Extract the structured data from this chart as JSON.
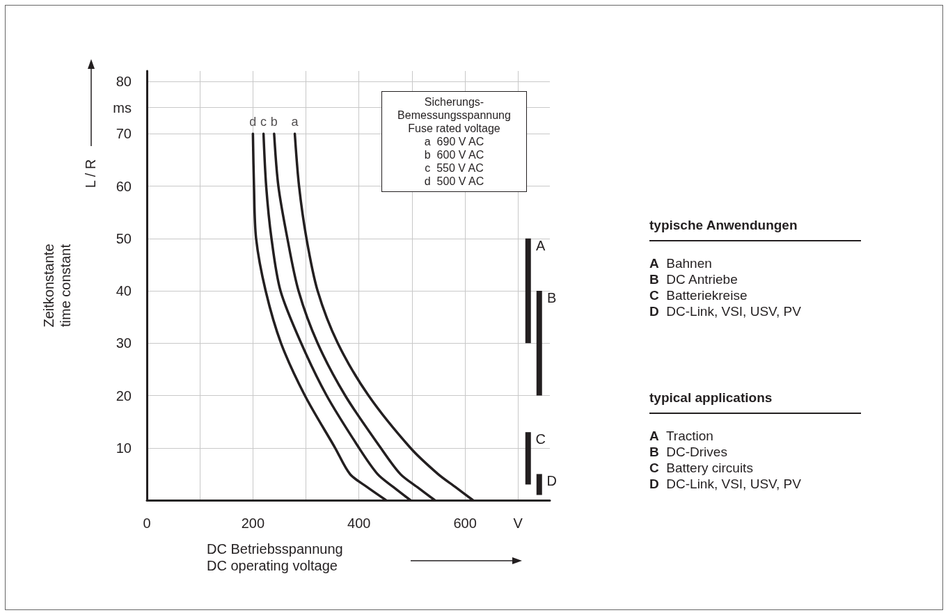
{
  "chart_data": {
    "type": "line",
    "xlabel": "DC Betriebsspannung\nDC operating voltage",
    "ylabel": "Zeitkonstante\ntime constant",
    "xlim": [
      0,
      760
    ],
    "ylim": [
      0,
      82
    ],
    "xticks": [
      0,
      {
        "value": 100,
        "label": null
      },
      200,
      {
        "value": 300,
        "label": null
      },
      400,
      {
        "value": 500,
        "label": null
      },
      600,
      {
        "value": 700,
        "label": "V"
      }
    ],
    "yticks": [
      {
        "value": 0,
        "label": null
      },
      10,
      20,
      30,
      40,
      50,
      60,
      70,
      {
        "value": 75,
        "label": "ms"
      },
      80
    ],
    "grid": true,
    "marker": "none",
    "line_style": "solid",
    "annotations": [
      "Sicherungs-\nBemessungsspannung\nFuse rated voltage\na  690 V AC\nb  600 V AC\nc  550 V AC\nd  500 V AC",
      "L / R",
      "typische Anwendungen",
      "A Bahnen\nB DC Antriebe\nC Batteriekreise\nD DC-Link, VSI, USV, PV",
      "typical applications",
      "A Traction\nB DC-Drives\nC Battery circuits\nD DC-Link, VSI, USV, PV"
    ],
    "series": [
      {
        "name": "d",
        "color": "#231f20",
        "x": [
          200,
          202,
          206,
          224,
          253,
          298,
          355,
          383,
          414,
          451
        ],
        "values": [
          70,
          60,
          50,
          40,
          30,
          20,
          10,
          5,
          2.6,
          0
        ]
      },
      {
        "name": "c",
        "color": "#231f20",
        "x": [
          220,
          225,
          235,
          252,
          291,
          339,
          400,
          435,
          465,
          497
        ],
        "values": [
          70,
          60,
          50,
          40,
          30,
          20,
          10,
          5,
          2.5,
          0
        ]
      },
      {
        "name": "b",
        "color": "#231f20",
        "x": [
          240,
          248,
          265,
          286,
          322,
          374,
          441,
          478,
          510,
          543
        ],
        "values": [
          70,
          60,
          50,
          40,
          30,
          20,
          10,
          5,
          2.5,
          0
        ]
      },
      {
        "name": "a",
        "color": "#231f20",
        "x": [
          279,
          287,
          301,
          322,
          360,
          418,
          497,
          549,
          582,
          615
        ],
        "values": [
          70,
          60,
          50,
          40,
          30,
          20,
          10,
          5,
          2.5,
          0
        ]
      },
      {
        "type": "bar",
        "color": "#231f20",
        "x": [
          719
        ],
        "base": [
          30
        ],
        "values": [
          20
        ],
        "value_labels": [
          "A"
        ]
      },
      {
        "type": "bar",
        "color": "#231f20",
        "x": [
          719
        ],
        "base": [
          3
        ],
        "values": [
          10
        ],
        "value_labels": [
          "C"
        ]
      },
      {
        "type": "bar",
        "color": "#231f20",
        "x": [
          740
        ],
        "base": [
          20
        ],
        "values": [
          20
        ],
        "value_labels": [
          "B"
        ]
      },
      {
        "type": "bar",
        "color": "#231f20",
        "x": [
          740
        ],
        "base": [
          1
        ],
        "values": [
          4
        ],
        "value_labels": [
          "D"
        ]
      }
    ]
  }
}
